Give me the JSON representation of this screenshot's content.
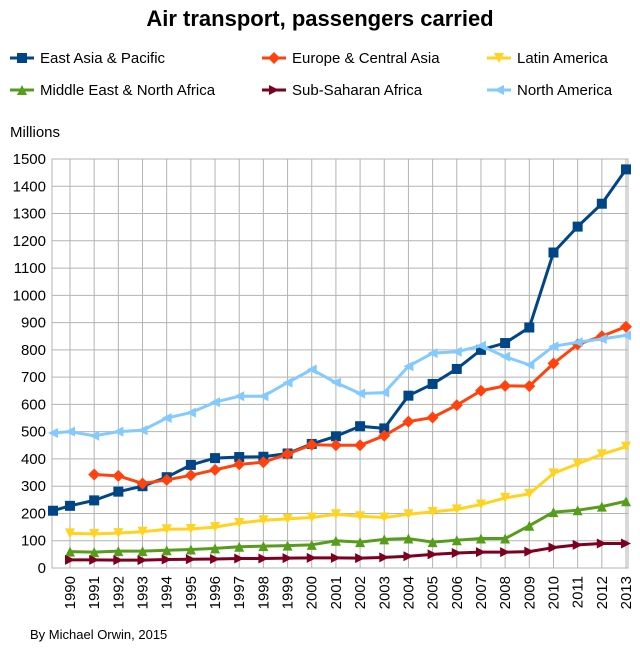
{
  "chart_data": {
    "type": "line",
    "title": "Air transport, passengers carried",
    "ylabel": "Millions",
    "xlabel": "",
    "credit": "By Michael Orwin, 2015",
    "ylim": [
      0,
      1500
    ],
    "yticks": [
      0,
      100,
      200,
      300,
      400,
      500,
      600,
      700,
      800,
      900,
      1000,
      1100,
      1200,
      1300,
      1400,
      1500
    ],
    "x": [
      1990,
      1991,
      1992,
      1993,
      1994,
      1995,
      1996,
      1997,
      1998,
      1999,
      2000,
      2001,
      2002,
      2003,
      2004,
      2005,
      2006,
      2007,
      2008,
      2009,
      2010,
      2011,
      2012,
      2013
    ],
    "grid": true,
    "legend_position": "top",
    "series": [
      {
        "name": "East Asia & Pacific",
        "color": "#004586",
        "marker": "square",
        "leading_value": 210,
        "values": [
          228,
          248,
          280,
          300,
          333,
          378,
          403,
          407,
          408,
          420,
          455,
          483,
          520,
          512,
          632,
          675,
          730,
          800,
          825,
          882,
          1157,
          1252,
          1336,
          1462
        ]
      },
      {
        "name": "Europe & Central Asia",
        "color": "#ff420e",
        "marker": "diamond",
        "values": [
          null,
          343,
          338,
          310,
          323,
          340,
          360,
          380,
          388,
          418,
          452,
          450,
          450,
          485,
          537,
          552,
          597,
          650,
          668,
          667,
          750,
          820,
          850,
          885
        ]
      },
      {
        "name": "Latin America",
        "color": "#ffd320",
        "marker": "triangle-down",
        "values": [
          127,
          125,
          128,
          133,
          142,
          143,
          150,
          165,
          175,
          180,
          185,
          197,
          190,
          185,
          197,
          206,
          215,
          233,
          257,
          272,
          347,
          382,
          417,
          445
        ]
      },
      {
        "name": "Middle East & North Africa",
        "color": "#579d1c",
        "marker": "triangle-up",
        "values": [
          60,
          58,
          62,
          62,
          65,
          68,
          72,
          78,
          80,
          82,
          85,
          100,
          95,
          105,
          108,
          95,
          102,
          108,
          108,
          155,
          205,
          212,
          225,
          245
        ]
      },
      {
        "name": "Sub-Saharan Africa",
        "color": "#7e0021",
        "marker": "triangle-right",
        "values": [
          30,
          30,
          29,
          29,
          31,
          32,
          33,
          35,
          35,
          36,
          37,
          37,
          36,
          39,
          43,
          50,
          55,
          58,
          58,
          60,
          75,
          85,
          90,
          90
        ]
      },
      {
        "name": "North America",
        "color": "#83caff",
        "marker": "triangle-left",
        "leading_value": 495,
        "values": [
          500,
          485,
          500,
          505,
          550,
          570,
          608,
          630,
          630,
          680,
          728,
          680,
          640,
          643,
          740,
          788,
          793,
          815,
          775,
          745,
          813,
          828,
          840,
          853
        ]
      }
    ]
  }
}
